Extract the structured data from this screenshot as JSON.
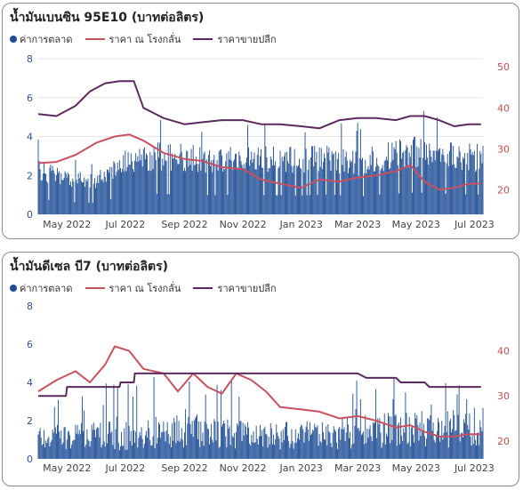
{
  "chart_data": [
    {
      "type": "bar",
      "title": "น้ำมันเบนซิน 95E10 (บาทต่อลิตร)",
      "legend": [
        "ค่าการตลาด",
        "ราคา ณ โรงกลั่น",
        "ราคาขายปลีก"
      ],
      "legend_placement": "top-left",
      "x_range": [
        "2022-04-01",
        "2023-07-10"
      ],
      "x_tick_labels": [
        "May 2022",
        "Jul 2022",
        "Sep 2022",
        "Nov 2022",
        "Jan 2023",
        "Mar 2023",
        "May 2023",
        "Jul 2023"
      ],
      "x_tick_dates": [
        "2022-05-01",
        "2022-07-01",
        "2022-09-01",
        "2022-11-01",
        "2023-01-01",
        "2023-03-01",
        "2023-05-01",
        "2023-07-01"
      ],
      "y_left": {
        "range": [
          0,
          8
        ],
        "ticks": [
          0,
          2,
          4,
          6,
          8
        ],
        "color": "#2f5597"
      },
      "y_right": {
        "range": [
          14,
          52
        ],
        "ticks": [
          20,
          30,
          40,
          50
        ],
        "color": "#c0504d"
      },
      "grid": true,
      "series": [
        {
          "name": "ค่าการตลาด",
          "type": "bar",
          "axis": "left",
          "color": "#1f4e96",
          "x": [
            "2022-04-01",
            "2022-05-01",
            "2022-06-01",
            "2022-07-01",
            "2022-08-01",
            "2022-09-01",
            "2022-10-01",
            "2022-11-01",
            "2022-12-01",
            "2023-01-01",
            "2023-02-01",
            "2023-03-01",
            "2023-04-01",
            "2023-05-01",
            "2023-06-01",
            "2023-07-01"
          ],
          "values": [
            2.3,
            1.8,
            1.7,
            2.7,
            3.0,
            2.9,
            2.8,
            2.9,
            2.8,
            2.8,
            2.9,
            2.6,
            3.0,
            3.2,
            3.0,
            2.9
          ]
        },
        {
          "name": "ราคา ณ โรงกลั่น",
          "type": "line",
          "axis": "right",
          "color": "#c9505e",
          "x": [
            "2022-04-01",
            "2022-04-20",
            "2022-05-10",
            "2022-06-01",
            "2022-06-20",
            "2022-07-05",
            "2022-07-20",
            "2022-08-10",
            "2022-09-01",
            "2022-09-20",
            "2022-10-10",
            "2022-11-01",
            "2022-11-20",
            "2022-12-10",
            "2023-01-01",
            "2023-01-20",
            "2023-02-10",
            "2023-03-01",
            "2023-03-20",
            "2023-04-10",
            "2023-04-25",
            "2023-05-10",
            "2023-05-25",
            "2023-06-10",
            "2023-06-25",
            "2023-07-08"
          ],
          "values": [
            26.5,
            26.8,
            28.5,
            31.5,
            33.0,
            33.5,
            32.0,
            29.0,
            27.5,
            27.0,
            25.5,
            25.0,
            22.5,
            21.5,
            20.5,
            22.5,
            22.0,
            23.0,
            23.5,
            24.5,
            26.0,
            22.0,
            20.0,
            20.5,
            21.5,
            21.5
          ]
        },
        {
          "name": "ราคาขายปลีก",
          "type": "line",
          "axis": "right",
          "color": "#5c2a5e",
          "x": [
            "2022-04-01",
            "2022-04-20",
            "2022-05-10",
            "2022-05-25",
            "2022-06-10",
            "2022-06-25",
            "2022-07-10",
            "2022-07-20",
            "2022-08-10",
            "2022-09-01",
            "2022-09-20",
            "2022-10-10",
            "2022-11-01",
            "2022-11-20",
            "2022-12-10",
            "2023-01-01",
            "2023-01-20",
            "2023-02-10",
            "2023-03-01",
            "2023-03-20",
            "2023-04-10",
            "2023-04-25",
            "2023-05-10",
            "2023-05-25",
            "2023-06-10",
            "2023-06-25",
            "2023-07-08"
          ],
          "values": [
            38.5,
            38.0,
            40.5,
            44.0,
            46.0,
            46.5,
            46.5,
            40.0,
            37.5,
            36.0,
            36.5,
            37.0,
            37.0,
            36.0,
            36.0,
            35.5,
            35.0,
            37.0,
            37.5,
            37.5,
            37.0,
            38.0,
            38.0,
            37.0,
            35.5,
            36.0,
            36.0
          ]
        }
      ]
    },
    {
      "type": "bar",
      "title": "น้ำมันดีเซล บี7 (บาทต่อลิตร)",
      "legend": [
        "ค่าการตลาด",
        "ราคา ณ โรงกลั่น",
        "ราคาขายปลีก"
      ],
      "legend_placement": "top-left",
      "x_range": [
        "2022-04-01",
        "2023-07-10"
      ],
      "x_tick_labels": [
        "May 2022",
        "Jul 2022",
        "Sep 2022",
        "Nov 2022",
        "Jan 2023",
        "Mar 2023",
        "May 2023",
        "Jul 2023"
      ],
      "x_tick_dates": [
        "2022-05-01",
        "2022-07-01",
        "2022-09-01",
        "2022-11-01",
        "2023-01-01",
        "2023-03-01",
        "2023-05-01",
        "2023-07-01"
      ],
      "y_left": {
        "range": [
          0,
          8
        ],
        "ticks": [
          0,
          2,
          4,
          6,
          8
        ],
        "color": "#2f5597"
      },
      "y_right": {
        "range": [
          16,
          50
        ],
        "ticks": [
          20,
          30,
          40
        ],
        "color": "#c0504d"
      },
      "grid": false,
      "series": [
        {
          "name": "ค่าการตลาด",
          "type": "bar",
          "axis": "left",
          "color": "#1f4e96",
          "x": [
            "2022-04-01",
            "2022-05-01",
            "2022-06-01",
            "2022-07-01",
            "2022-08-01",
            "2022-09-01",
            "2022-10-01",
            "2022-11-01",
            "2022-12-01",
            "2023-01-01",
            "2023-02-01",
            "2023-03-01",
            "2023-04-01",
            "2023-05-01",
            "2023-06-01",
            "2023-07-01"
          ],
          "values": [
            1.3,
            1.2,
            1.4,
            1.3,
            1.5,
            1.6,
            1.5,
            1.4,
            1.3,
            1.3,
            1.4,
            1.5,
            1.6,
            1.7,
            1.7,
            1.8
          ]
        },
        {
          "name": "ราคา ณ โรงกลั่น",
          "type": "line",
          "axis": "right",
          "color": "#c9505e",
          "x": [
            "2022-04-01",
            "2022-04-20",
            "2022-05-10",
            "2022-05-25",
            "2022-06-10",
            "2022-06-20",
            "2022-07-05",
            "2022-07-20",
            "2022-08-10",
            "2022-08-25",
            "2022-09-10",
            "2022-09-25",
            "2022-10-10",
            "2022-10-25",
            "2022-11-10",
            "2022-11-25",
            "2022-12-10",
            "2023-01-01",
            "2023-01-20",
            "2023-02-10",
            "2023-03-01",
            "2023-03-20",
            "2023-04-10",
            "2023-04-25",
            "2023-05-10",
            "2023-05-25",
            "2023-06-10",
            "2023-06-25",
            "2023-07-08"
          ],
          "values": [
            31.0,
            33.5,
            35.5,
            33.0,
            37.0,
            41.0,
            40.0,
            36.0,
            35.0,
            31.0,
            35.0,
            32.0,
            30.5,
            35.0,
            33.5,
            31.0,
            27.5,
            27.0,
            26.5,
            25.0,
            25.5,
            24.5,
            23.0,
            23.5,
            22.0,
            21.0,
            21.0,
            21.5,
            21.5
          ]
        },
        {
          "name": "ราคาขายปลีก",
          "type": "line",
          "axis": "right",
          "color": "#5c2a5e",
          "x": [
            "2022-04-01",
            "2022-04-30",
            "2022-05-01",
            "2022-06-25",
            "2022-06-26",
            "2022-07-10",
            "2022-07-11",
            "2023-03-01",
            "2023-03-10",
            "2023-04-10",
            "2023-04-15",
            "2023-05-10",
            "2023-05-15",
            "2023-07-08"
          ],
          "values": [
            30.0,
            30.0,
            32.0,
            32.0,
            33.0,
            33.0,
            35.0,
            35.0,
            34.0,
            34.0,
            33.0,
            33.0,
            32.0,
            32.0
          ]
        }
      ]
    }
  ]
}
